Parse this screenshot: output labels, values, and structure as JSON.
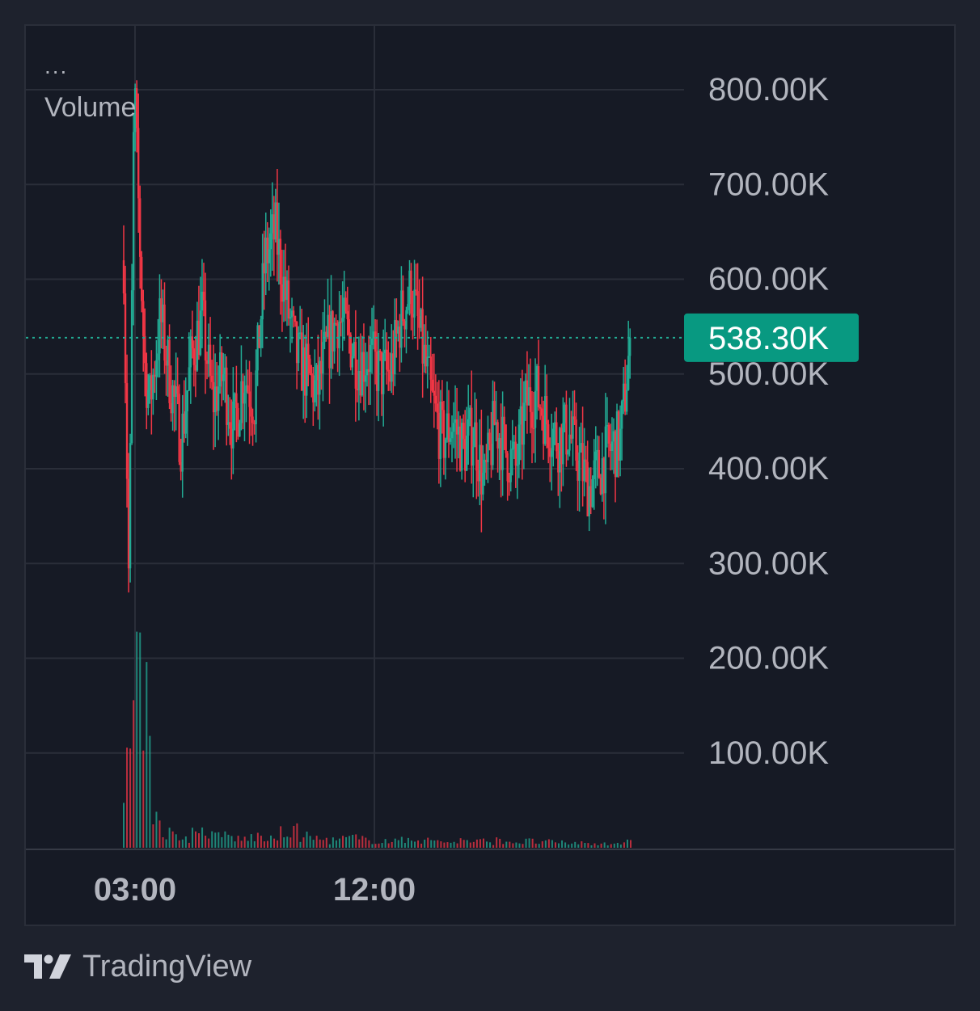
{
  "legend": {
    "menu_label": "...",
    "indicator_label": "Volume"
  },
  "footer": {
    "brand": "TradingView",
    "logo_icon": "tradingview-logo-icon"
  },
  "colors": {
    "background": "#161a25",
    "grid": "#2a2e39",
    "up": "#22ab94",
    "down": "#f23645",
    "label_bg": "#089981",
    "text": "#b2b5be"
  },
  "chart_data": {
    "type": "candlestick",
    "title": "",
    "ylim": [
      0,
      800000
    ],
    "y_ticks": [
      "800.00K",
      "700.00K",
      "600.00K",
      "500.00K",
      "400.00K",
      "300.00K",
      "200.00K",
      "100.00K"
    ],
    "x_ticks": [
      "03:00",
      "12:00"
    ],
    "last_value": 538300,
    "last_value_label": "538.30K",
    "grid": true,
    "series": [
      {
        "name": "",
        "kind": "price",
        "approx_path": [
          [
            0,
            620000
          ],
          [
            2,
            270000
          ],
          [
            4,
            810000
          ],
          [
            6,
            650000
          ],
          [
            8,
            510000
          ],
          [
            10,
            470000
          ],
          [
            14,
            560000
          ],
          [
            18,
            490000
          ],
          [
            22,
            430000
          ],
          [
            26,
            520000
          ],
          [
            30,
            560000
          ],
          [
            34,
            470000
          ],
          [
            38,
            500000
          ],
          [
            42,
            440000
          ],
          [
            46,
            500000
          ],
          [
            50,
            470000
          ],
          [
            54,
            620000
          ],
          [
            58,
            650000
          ],
          [
            62,
            580000
          ],
          [
            66,
            520000
          ],
          [
            70,
            500000
          ],
          [
            74,
            480000
          ],
          [
            78,
            530000
          ],
          [
            82,
            560000
          ],
          [
            86,
            540000
          ],
          [
            90,
            510000
          ],
          [
            94,
            520000
          ],
          [
            98,
            500000
          ],
          [
            102,
            500000
          ],
          [
            106,
            560000
          ],
          [
            110,
            590000
          ],
          [
            114,
            530000
          ],
          [
            118,
            470000
          ],
          [
            122,
            430000
          ],
          [
            126,
            450000
          ],
          [
            130,
            420000
          ],
          [
            134,
            440000
          ],
          [
            138,
            380000
          ],
          [
            142,
            450000
          ],
          [
            146,
            420000
          ],
          [
            150,
            400000
          ],
          [
            154,
            470000
          ],
          [
            158,
            480000
          ],
          [
            162,
            450000
          ],
          [
            166,
            430000
          ],
          [
            170,
            440000
          ],
          [
            174,
            410000
          ],
          [
            178,
            380000
          ],
          [
            182,
            400000
          ],
          [
            186,
            420000
          ],
          [
            190,
            430000
          ],
          [
            194,
            538300
          ]
        ]
      },
      {
        "name": "Volume",
        "kind": "volume",
        "approx_values": [
          110000,
          180000,
          230000,
          40000,
          20000,
          15000,
          12000,
          18000,
          20000,
          14000,
          16000,
          12000,
          10000,
          14000,
          12000,
          10000,
          18000,
          20000,
          14000,
          12000,
          10000,
          9000,
          11000,
          12000,
          10000,
          9000,
          9000,
          8000,
          9000,
          12000,
          10000,
          9000,
          8000,
          7000,
          9000,
          8000,
          8000,
          7000,
          9000,
          8000,
          7000,
          8000,
          7000,
          7000,
          6000,
          6000,
          6000,
          5000,
          5000,
          6000,
          6000,
          7000
        ]
      }
    ]
  }
}
